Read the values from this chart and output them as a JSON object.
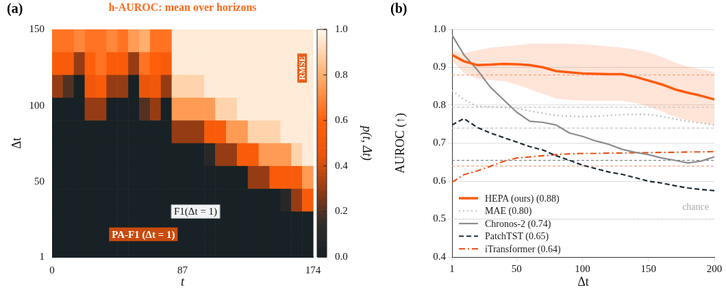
{
  "chart_data": [
    {
      "type": "heatmap",
      "title": "h-AUROC: mean over horizons",
      "xlabel": "t",
      "ylabel": "Δt",
      "clabel": "p(t, Δt)",
      "x": [
        3.625,
        10.875,
        18.125,
        25.375,
        32.625,
        39.875,
        47.125,
        54.375,
        61.625,
        68.875,
        76.125,
        83.375,
        90.625,
        97.875,
        105.125,
        112.375,
        119.625,
        126.875,
        134.125,
        141.375,
        148.625,
        155.875,
        163.125,
        170.375
      ],
      "y": [
        142.55,
        127.65,
        112.75,
        97.85,
        82.95,
        68.05,
        53.15,
        38.25,
        23.35,
        8.45
      ],
      "cells": [
        [
          0.65,
          0.65,
          0.7,
          0.65,
          0.65,
          0.7,
          0.65,
          0.75,
          0.8,
          0.65,
          0.65,
          0.97,
          0.97,
          0.97,
          0.97,
          0.97,
          0.97,
          0.97,
          0.97,
          0.97,
          0.97,
          0.97,
          0.97,
          0.97
        ],
        [
          0.55,
          0.55,
          0.3,
          0.6,
          0.65,
          0.55,
          0.55,
          0.3,
          0.65,
          0.6,
          0.55,
          0.97,
          0.97,
          0.97,
          0.97,
          0.97,
          0.97,
          0.97,
          0.97,
          0.97,
          0.97,
          0.97,
          0.97,
          0.97
        ],
        [
          0.3,
          0.2,
          0,
          0.5,
          0.55,
          0.3,
          0.3,
          0,
          0.45,
          0.5,
          0.3,
          0.9,
          0.9,
          0.9,
          0.97,
          0.97,
          0.97,
          0.97,
          0.97,
          0.97,
          0.97,
          0.97,
          0.97,
          0.97
        ],
        [
          0,
          0,
          0,
          0.3,
          0.3,
          0,
          0,
          0,
          0.2,
          0.3,
          0,
          0.75,
          0.75,
          0.75,
          0.75,
          0.9,
          0.9,
          0.97,
          0.97,
          0.97,
          0.97,
          0.97,
          0.97,
          0.97
        ],
        [
          0,
          0,
          0,
          0,
          0,
          0,
          0,
          0,
          0,
          0,
          0,
          0.3,
          0.3,
          0.3,
          0.55,
          0.55,
          0.75,
          0.75,
          0.9,
          0.9,
          0.9,
          0.97,
          0.97,
          0.97
        ],
        [
          0,
          0,
          0,
          0,
          0,
          0,
          0,
          0,
          0,
          0,
          0,
          0,
          0,
          0,
          0.1,
          0.3,
          0.3,
          0.55,
          0.55,
          0.75,
          0.75,
          0.75,
          0.9,
          0.97
        ],
        [
          0,
          0,
          0,
          0,
          0,
          0,
          0,
          0,
          0,
          0,
          0,
          0,
          0,
          0,
          0,
          0,
          0,
          0,
          0.3,
          0.3,
          0.55,
          0.55,
          0.55,
          0.75
        ],
        [
          0,
          0,
          0,
          0,
          0,
          0,
          0,
          0,
          0,
          0,
          0,
          0,
          0,
          0,
          0,
          0,
          0,
          0,
          0,
          0,
          0,
          0.1,
          0.3,
          0.55
        ],
        [
          0,
          0,
          0,
          0,
          0,
          0,
          0,
          0,
          0,
          0,
          0,
          0,
          0,
          0,
          0,
          0,
          0,
          0,
          0,
          0,
          0,
          0,
          0,
          0
        ],
        [
          0,
          0,
          0,
          0,
          0,
          0,
          0,
          0,
          0,
          0,
          0,
          0,
          0,
          0,
          0,
          0,
          0,
          0,
          0,
          0,
          0,
          0,
          0,
          0
        ]
      ],
      "xlim": [
        0,
        174
      ],
      "xticks": [
        0,
        87,
        174
      ],
      "ylim": [
        1,
        150
      ],
      "yticks": [
        1,
        50,
        100,
        150
      ],
      "clim": [
        0,
        1
      ],
      "cticks": [
        {
          "value": 0,
          "label": "0.0"
        },
        0.2,
        0.4,
        0.6,
        0.8,
        {
          "value": 1,
          "label": "1.0"
        }
      ],
      "annotations": [
        "(a)",
        "RMSE",
        "F1(Δt = 1)",
        "PA-F1 (Δt = 1)"
      ]
    },
    {
      "type": "line",
      "xlabel": "Δt",
      "ylabel": "AUROC (↑)",
      "x": [
        1,
        10,
        20,
        30,
        40,
        50,
        60,
        70,
        80,
        90,
        100,
        110,
        120,
        130,
        140,
        150,
        160,
        170,
        180,
        190,
        200
      ],
      "series": [
        {
          "name": "HEPA (ours) (0.88)",
          "color": "#ff5a0a",
          "line_style": "solid",
          "values": [
            0.933,
            0.916,
            0.906,
            0.907,
            0.909,
            0.908,
            0.906,
            0.9,
            0.89,
            0.887,
            0.884,
            0.883,
            0.882,
            0.882,
            0.875,
            0.865,
            0.855,
            0.842,
            0.833,
            0.825,
            0.815
          ],
          "lower": [
            0.918,
            0.885,
            0.87,
            0.866,
            0.864,
            0.855,
            0.842,
            0.83,
            0.818,
            0.814,
            0.812,
            0.812,
            0.812,
            0.812,
            0.806,
            0.797,
            0.784,
            0.77,
            0.76,
            0.753,
            0.748
          ],
          "upper": [
            0.945,
            0.937,
            0.945,
            0.952,
            0.955,
            0.958,
            0.962,
            0.962,
            0.962,
            0.962,
            0.961,
            0.958,
            0.955,
            0.952,
            0.947,
            0.939,
            0.928,
            0.912,
            0.902,
            0.895,
            0.888
          ]
        },
        {
          "name": "MAE (0.80)",
          "color": "#bdbdbd",
          "line_style": "dotted",
          "values": [
            0.839,
            0.815,
            0.797,
            0.796,
            0.795,
            0.792,
            0.785,
            0.779,
            0.773,
            0.771,
            0.77,
            0.771,
            0.773,
            0.775,
            0.776,
            0.776,
            0.771,
            0.764,
            0.758,
            0.753,
            0.748
          ]
        },
        {
          "name": "Chronos-2 (0.74)",
          "color": "#8c8c8c",
          "line_style": "solid",
          "values": [
            0.985,
            0.933,
            0.894,
            0.848,
            0.815,
            0.782,
            0.758,
            0.755,
            0.748,
            0.727,
            0.718,
            0.706,
            0.697,
            0.684,
            0.676,
            0.67,
            0.661,
            0.655,
            0.648,
            0.653,
            0.664
          ]
        },
        {
          "name": "PatchTST (0.65)",
          "color": "#1c2a33",
          "line_style": "dashed",
          "values": [
            0.748,
            0.765,
            0.742,
            0.727,
            0.715,
            0.703,
            0.691,
            0.682,
            0.667,
            0.655,
            0.642,
            0.633,
            0.624,
            0.618,
            0.609,
            0.6,
            0.595,
            0.588,
            0.582,
            0.578,
            0.575
          ]
        },
        {
          "name": "iTransformer (0.64)",
          "color": "#e8541c",
          "line_style": "dashdot",
          "values": [
            0.597,
            0.617,
            0.627,
            0.639,
            0.652,
            0.661,
            0.664,
            0.667,
            0.67,
            0.672,
            0.673,
            0.673,
            0.674,
            0.674,
            0.675,
            0.675,
            0.676,
            0.676,
            0.677,
            0.677,
            0.678
          ]
        }
      ],
      "xlim": [
        1,
        200
      ],
      "xticks": [
        1,
        50,
        100,
        150,
        200
      ],
      "ylim": [
        0.4,
        1
      ],
      "yticks": [
        0.4,
        0.5,
        0.6,
        0.7,
        0.8,
        0.9,
        {
          "value": 1,
          "label": "1.0"
        }
      ],
      "grid": "y",
      "legend": "bottom left",
      "ref_lines": [
        {
          "axis": "y",
          "value": 0.88,
          "color": "#f9a27c",
          "line_style": "dashed"
        },
        {
          "axis": "y",
          "value": 0.795,
          "color": "#c4c4c4",
          "line_style": "dashed"
        },
        {
          "axis": "y",
          "value": 0.74,
          "color": "#c4c4c4",
          "line_style": "dashed"
        },
        {
          "axis": "y",
          "value": 0.655,
          "color": "#6b7378",
          "line_style": "dashed"
        },
        {
          "axis": "y",
          "value": 0.64,
          "color": "#f9a27c",
          "line_style": "dashed"
        },
        {
          "axis": "y",
          "value": 0.5,
          "color": "#cccccc",
          "line_style": "dotted",
          "label": "chance"
        }
      ],
      "annotations": [
        "(b)"
      ]
    }
  ]
}
